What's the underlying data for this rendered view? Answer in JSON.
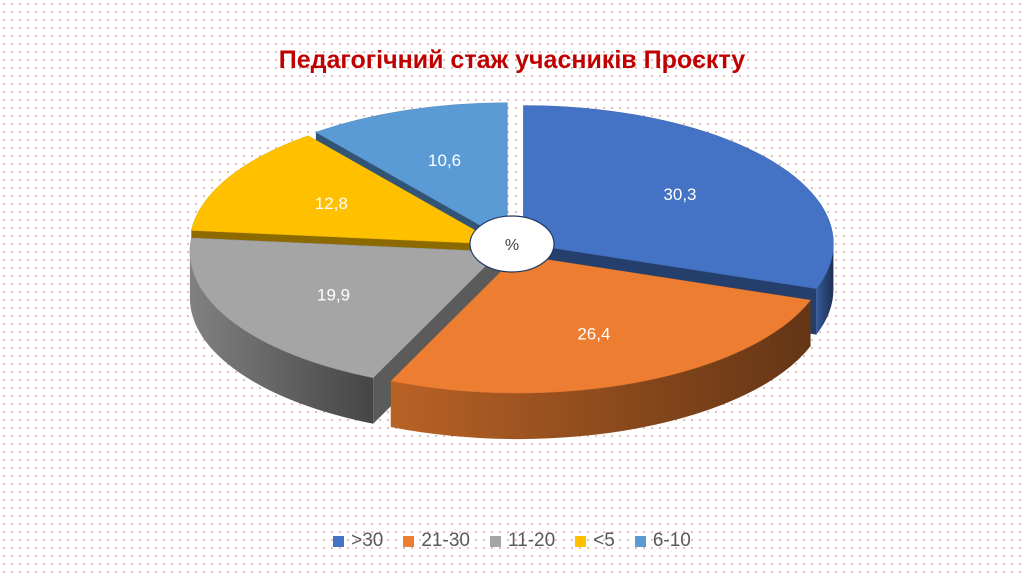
{
  "chart_data": {
    "type": "pie",
    "title": "Педагогічний стаж учасників Проєкту",
    "center_label": "%",
    "slices": [
      {
        "label": ">30",
        "value": 30.3,
        "value_label": "30,3",
        "color": "#4472c4"
      },
      {
        "label": "21-30",
        "value": 26.4,
        "value_label": "26,4",
        "color": "#ed7d31"
      },
      {
        "label": "11-20",
        "value": 19.9,
        "value_label": "19,9",
        "color": "#a5a5a5"
      },
      {
        "label": "<5",
        "value": 12.8,
        "value_label": "12,8",
        "color": "#ffc000"
      },
      {
        "label": "6-10",
        "value": 10.6,
        "value_label": "10,6",
        "color": "#5b9bd5"
      }
    ],
    "legend_position": "bottom"
  }
}
